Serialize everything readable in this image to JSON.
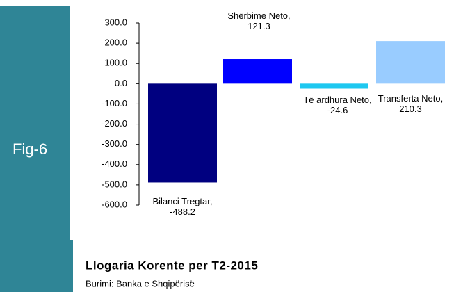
{
  "chart_data": {
    "type": "bar",
    "side_label": "Fig-6",
    "title": "Llogaria Korente per T2-2015",
    "source": "Burimi: Banka e Shqipërisë",
    "values": [
      -488.2,
      121.3,
      -24.6,
      210.3
    ],
    "value_labels": [
      "Bilanci Tregtar, -488.2",
      "Shërbime Neto, 121.3",
      "Të ardhura Neto, -24.6",
      "Transferta Neto, 210.3"
    ],
    "colors": [
      "#000080",
      "#0000ff",
      "#1ec8f0",
      "#99ccff"
    ],
    "ylim": [
      -600,
      300
    ],
    "yticks": [
      {
        "value": 300,
        "label": "300.0"
      },
      {
        "value": 200,
        "label": "200.0"
      },
      {
        "value": 100,
        "label": "100.0"
      },
      {
        "value": 0,
        "label": "0.0"
      },
      {
        "value": -100,
        "label": "-100.0"
      },
      {
        "value": -200,
        "label": "-200.0"
      },
      {
        "value": -300,
        "label": "-300.0"
      },
      {
        "value": -400,
        "label": "-400.0"
      },
      {
        "value": -500,
        "label": "-500.0"
      },
      {
        "value": -600,
        "label": "-600.0"
      }
    ]
  }
}
